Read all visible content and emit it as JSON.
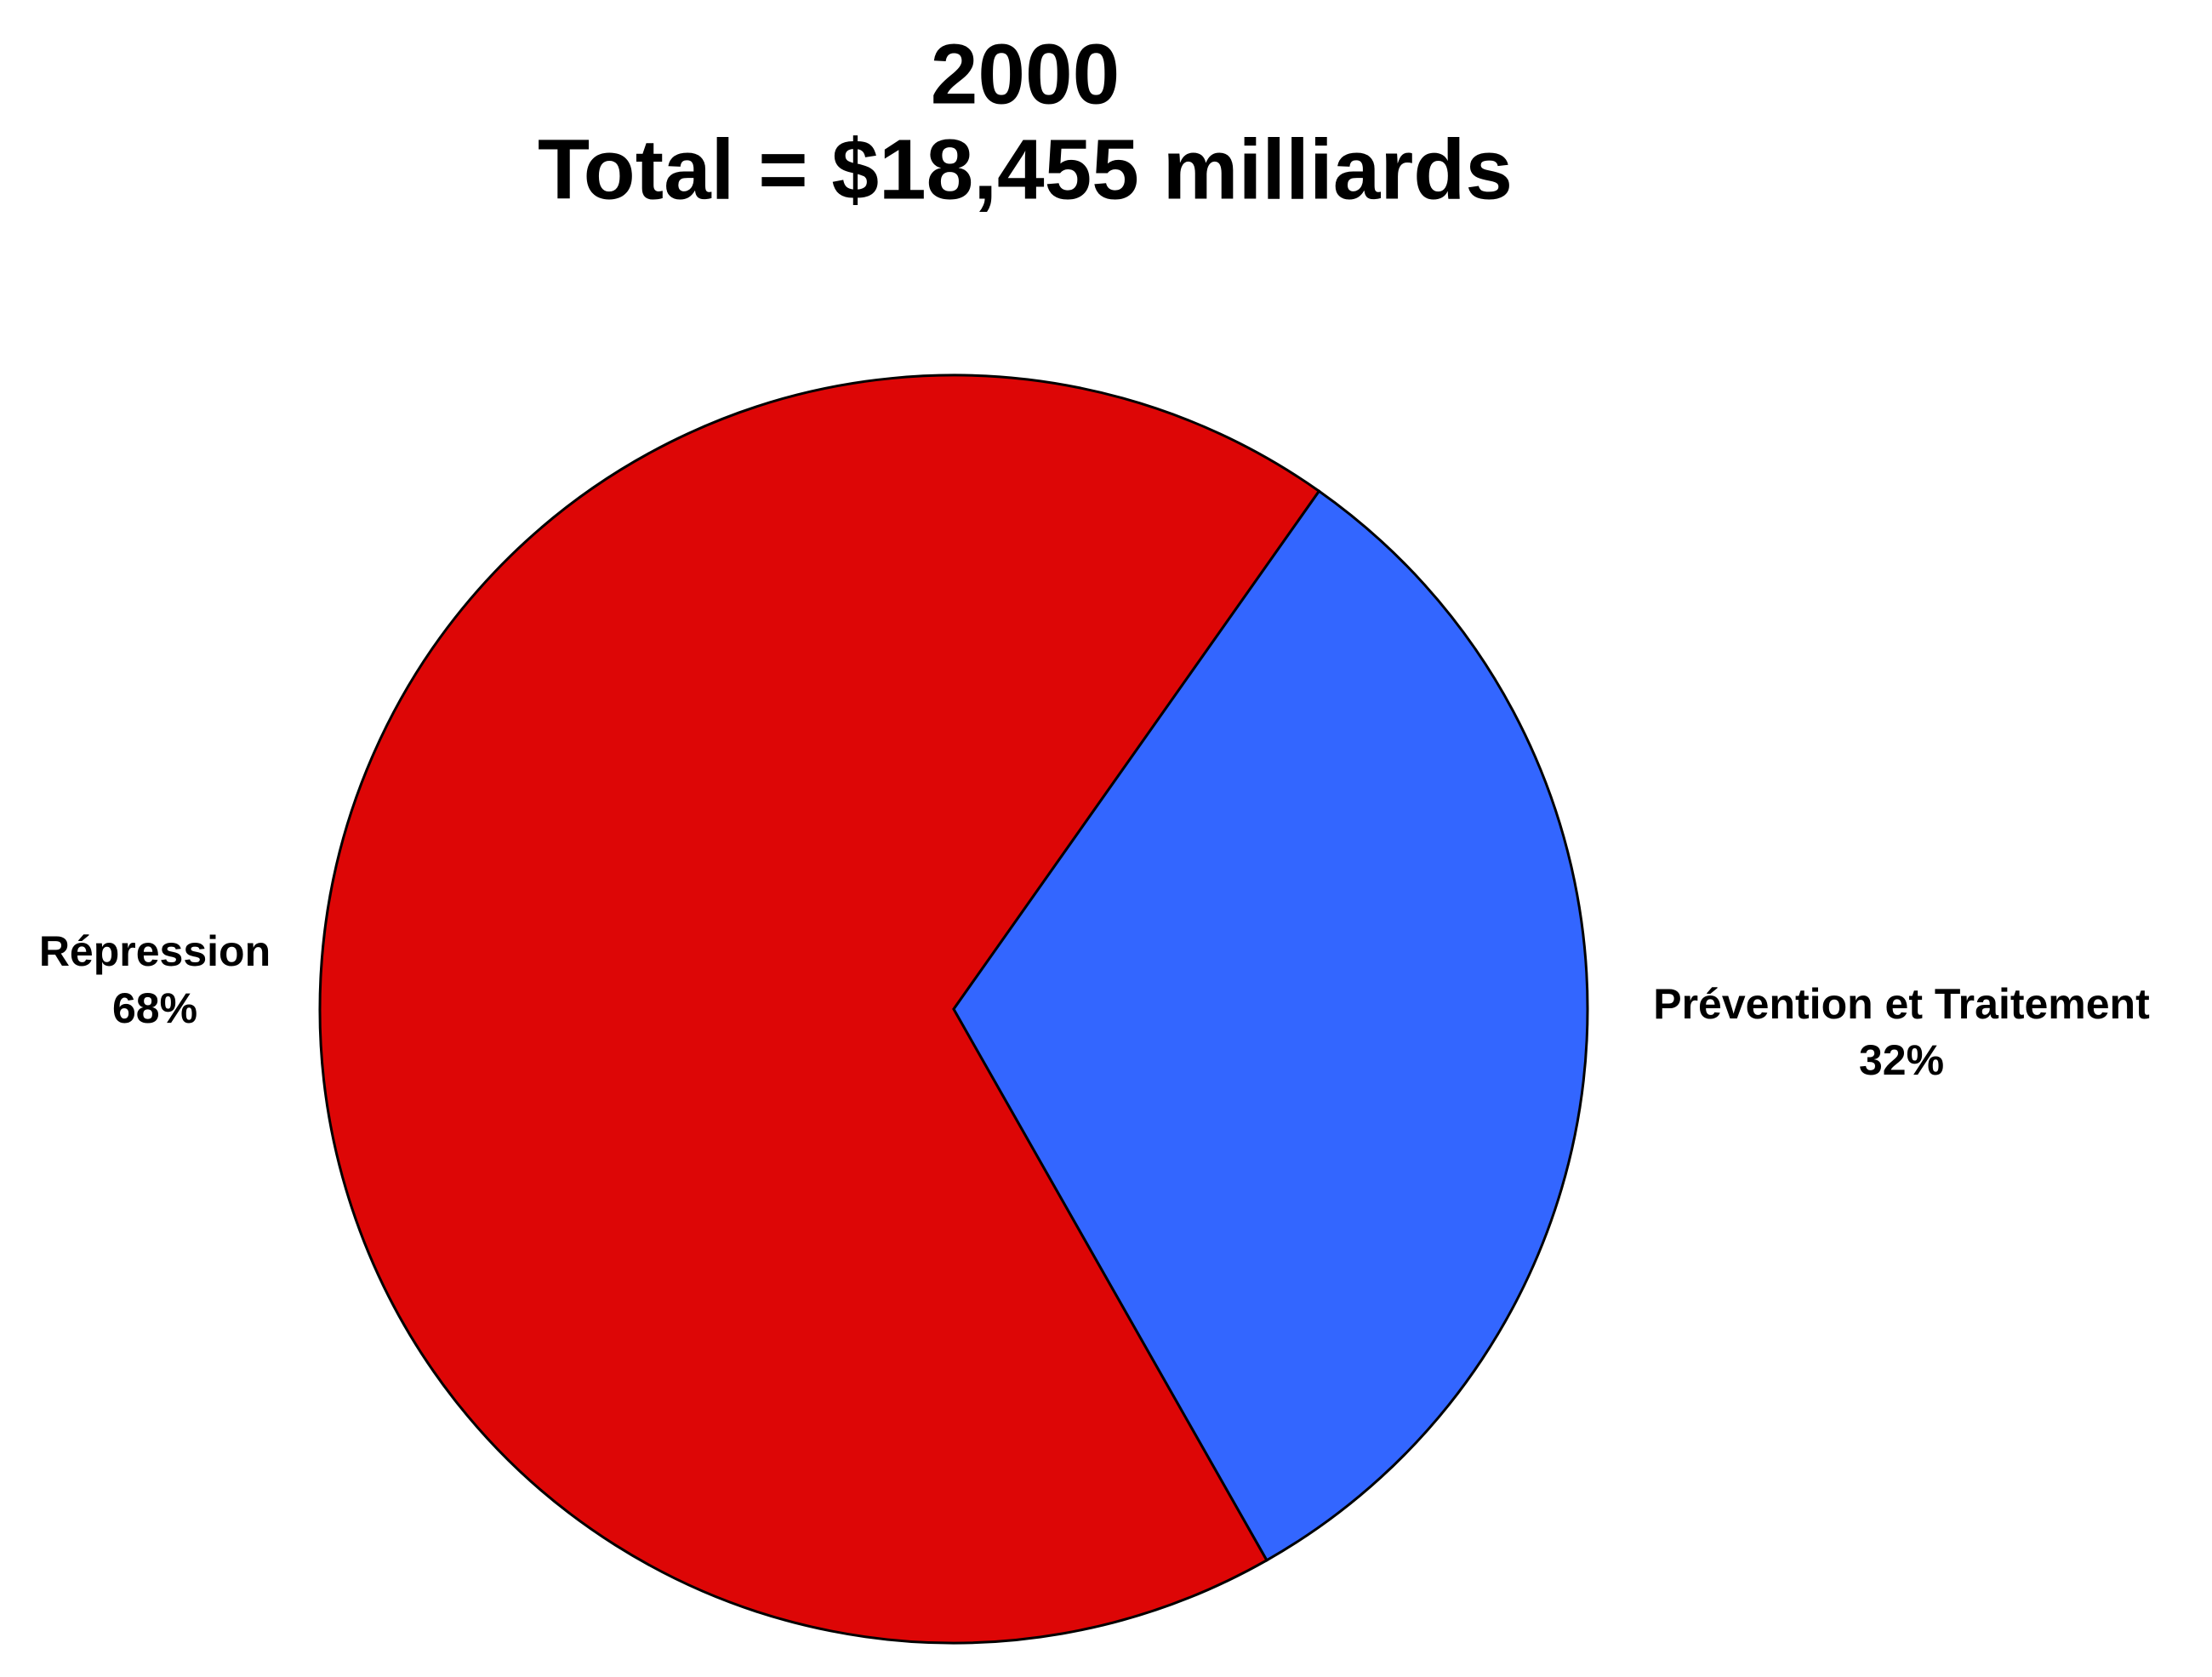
{
  "chart_data": {
    "type": "pie",
    "title": "2000",
    "subtitle": "Total = $18,455 milliards",
    "categories": [
      "Répression",
      "Prévention et Traitement"
    ],
    "values": [
      68,
      32
    ],
    "value_labels": [
      "68%",
      "32%"
    ],
    "colors": [
      "#dd0606",
      "#3366ff"
    ]
  }
}
